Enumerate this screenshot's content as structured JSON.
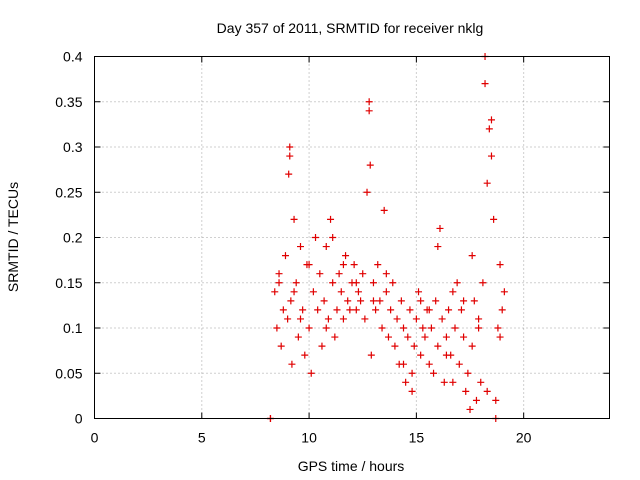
{
  "chart_data": {
    "type": "scatter",
    "title": "Day 357 of 2011, SRMTID for receiver nklg",
    "xlabel": "GPS time / hours",
    "ylabel": "SRMTID / TECUs",
    "xlim": [
      0,
      24
    ],
    "ylim": [
      0,
      0.4
    ],
    "grid": true,
    "marker": "+",
    "color": "#e00000",
    "x_ticks": [
      0,
      5,
      10,
      15,
      20
    ],
    "x_tick_labels": [
      "0",
      "5",
      "10",
      "15",
      "20"
    ],
    "y_ticks": [
      0,
      0.05,
      0.1,
      0.15,
      0.2,
      0.25,
      0.3,
      0.35,
      0.4
    ],
    "y_tick_labels": [
      "0",
      "0.05",
      "0.1",
      "0.15",
      "0.2",
      "0.25",
      "0.3",
      "0.35",
      "0.4"
    ],
    "series": [
      {
        "name": "SRMTID",
        "x": [
          8.2,
          8.4,
          8.5,
          8.6,
          8.7,
          8.8,
          8.9,
          9.0,
          9.1,
          9.15,
          9.2,
          9.3,
          9.4,
          9.5,
          9.6,
          9.7,
          9.8,
          9.9,
          10.0,
          10.1,
          10.2,
          10.3,
          10.4,
          10.5,
          10.6,
          10.7,
          10.8,
          10.9,
          11.0,
          11.1,
          11.2,
          11.3,
          11.4,
          11.5,
          11.6,
          11.7,
          11.8,
          11.9,
          12.0,
          12.1,
          12.2,
          12.3,
          12.4,
          12.5,
          12.6,
          12.7,
          12.8,
          12.9,
          13.0,
          13.1,
          13.2,
          13.3,
          13.4,
          13.5,
          13.6,
          13.7,
          13.8,
          13.9,
          14.0,
          14.1,
          14.2,
          14.3,
          14.4,
          14.5,
          14.6,
          14.7,
          14.8,
          14.9,
          15.0,
          15.1,
          15.2,
          15.3,
          15.4,
          15.5,
          15.6,
          15.7,
          15.8,
          15.9,
          16.0,
          16.1,
          16.2,
          16.3,
          16.4,
          16.5,
          16.6,
          16.7,
          16.8,
          16.9,
          17.0,
          17.1,
          17.2,
          17.3,
          17.4,
          17.5,
          17.6,
          17.7,
          17.8,
          17.9,
          18.0,
          18.1,
          18.2,
          18.3,
          18.4,
          18.5,
          18.6,
          18.7,
          18.8,
          18.9,
          19.0,
          19.1,
          8.2,
          18.7,
          9.1,
          12.8,
          18.2,
          18.5,
          13.6,
          16.0,
          11.1,
          9.6,
          12.85,
          18.3,
          9.05,
          10.0,
          14.4,
          15.2,
          17.6,
          18.9,
          17.2,
          16.7,
          12.2,
          11.6,
          10.8,
          9.3,
          8.6,
          13.0,
          14.8,
          15.6,
          16.4,
          17.9
        ],
        "y": [
          0.0,
          0.14,
          0.1,
          0.16,
          0.08,
          0.12,
          0.18,
          0.11,
          0.29,
          0.13,
          0.06,
          0.22,
          0.15,
          0.09,
          0.19,
          0.12,
          0.07,
          0.17,
          0.1,
          0.05,
          0.14,
          0.2,
          0.12,
          0.16,
          0.08,
          0.13,
          0.19,
          0.11,
          0.22,
          0.15,
          0.09,
          0.12,
          0.16,
          0.14,
          0.11,
          0.18,
          0.13,
          0.12,
          0.15,
          0.17,
          0.12,
          0.14,
          0.13,
          0.16,
          0.11,
          0.25,
          0.34,
          0.07,
          0.15,
          0.12,
          0.17,
          0.13,
          0.1,
          0.23,
          0.14,
          0.09,
          0.12,
          0.15,
          0.08,
          0.11,
          0.06,
          0.13,
          0.1,
          0.04,
          0.09,
          0.12,
          0.05,
          0.08,
          0.11,
          0.14,
          0.07,
          0.1,
          0.09,
          0.12,
          0.06,
          0.1,
          0.05,
          0.13,
          0.08,
          0.21,
          0.11,
          0.04,
          0.09,
          0.12,
          0.07,
          0.14,
          0.1,
          0.15,
          0.06,
          0.12,
          0.09,
          0.03,
          0.05,
          0.01,
          0.08,
          0.13,
          0.02,
          0.11,
          0.04,
          0.15,
          0.37,
          0.03,
          0.32,
          0.29,
          0.22,
          0.02,
          0.1,
          0.17,
          0.12,
          0.14,
          0.0,
          0.0,
          0.3,
          0.35,
          0.4,
          0.33,
          0.16,
          0.19,
          0.2,
          0.11,
          0.28,
          0.26,
          0.27,
          0.17,
          0.06,
          0.13,
          0.18,
          0.09,
          0.13,
          0.04,
          0.15,
          0.17,
          0.1,
          0.14,
          0.15,
          0.13,
          0.03,
          0.12,
          0.07,
          0.1
        ]
      }
    ]
  }
}
